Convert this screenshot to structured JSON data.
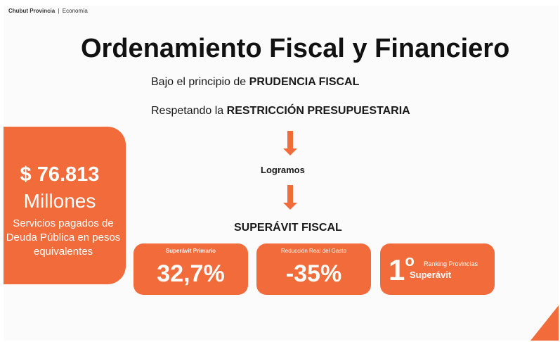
{
  "brand": {
    "name": "Chubut Provincia",
    "separator": "|",
    "section": "Economía"
  },
  "title": "Ordenamiento Fiscal y Financiero",
  "lines": [
    {
      "prefix": "Bajo el principio de ",
      "emphasis": "PRUDENCIA FISCAL"
    },
    {
      "prefix": "Respetando la ",
      "emphasis": "RESTRICCIÓN PRESUPUESTARIA"
    }
  ],
  "logramos": "Logramos",
  "superavit_title": "SUPERÁVIT FISCAL",
  "debt_card": {
    "amount": "$ 76.813",
    "unit": "Millones",
    "description": "Servicios pagados de Deuda Pública en pesos equivalentes"
  },
  "cards": [
    {
      "label": "Superávit Primario",
      "value": "32,7%"
    },
    {
      "label": "Reducción Real del Gasto",
      "value": "-35%"
    }
  ],
  "ranking": {
    "number": "1",
    "ordinal": "o",
    "label": "Ranking Provincias",
    "sub": "Superávit"
  },
  "colors": {
    "accent": "#f26b3a",
    "text": "#111111",
    "background": "#fbfbfb"
  }
}
